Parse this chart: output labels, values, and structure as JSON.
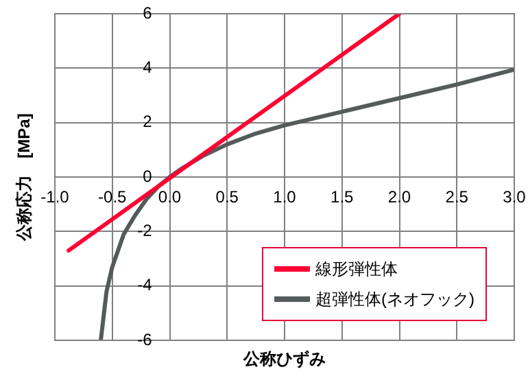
{
  "chart_data": {
    "type": "line",
    "xlabel": "公称ひずみ",
    "ylabel": "公称応力　[MPa]",
    "xlim": [
      -1.0,
      3.0
    ],
    "ylim": [
      -6,
      6
    ],
    "xticks": [
      {
        "value": -1,
        "label": "-1.0"
      },
      {
        "value": -0.5,
        "label": "-0.5"
      },
      {
        "value": 0,
        "label": "0.0"
      },
      {
        "value": 0.5,
        "label": "0.5"
      },
      {
        "value": 1,
        "label": "1.0"
      },
      {
        "value": 1.5,
        "label": "1.5"
      },
      {
        "value": 2,
        "label": "2.0"
      },
      {
        "value": 2.5,
        "label": "2.5"
      },
      {
        "value": 3,
        "label": "3.0"
      }
    ],
    "yticks": [
      -6,
      -4,
      -2,
      0,
      2,
      4,
      6
    ],
    "grid": true,
    "legend": "bottom right",
    "marker": "none",
    "line_style": "solid",
    "series": [
      {
        "name": "線形弾性体",
        "color": "#ff0033",
        "x": [
          -0.88,
          2.0
        ],
        "values": [
          -2.7,
          6.0
        ]
      },
      {
        "name": "超弾性体(ネオフック)",
        "color": "#555a5a",
        "x": [
          -0.6,
          -0.55,
          -0.5,
          -0.4,
          -0.3,
          -0.2,
          -0.1,
          0,
          0.1,
          0.2,
          0.3,
          0.5,
          0.75,
          1.0,
          1.5,
          2.0,
          2.5,
          3.0
        ],
        "values": [
          -6,
          -4.2,
          -3.3,
          -2.1,
          -1.4,
          -0.8,
          -0.35,
          0,
          0.3,
          0.55,
          0.8,
          1.2,
          1.6,
          1.9,
          2.4,
          2.9,
          3.4,
          3.95
        ]
      }
    ]
  }
}
